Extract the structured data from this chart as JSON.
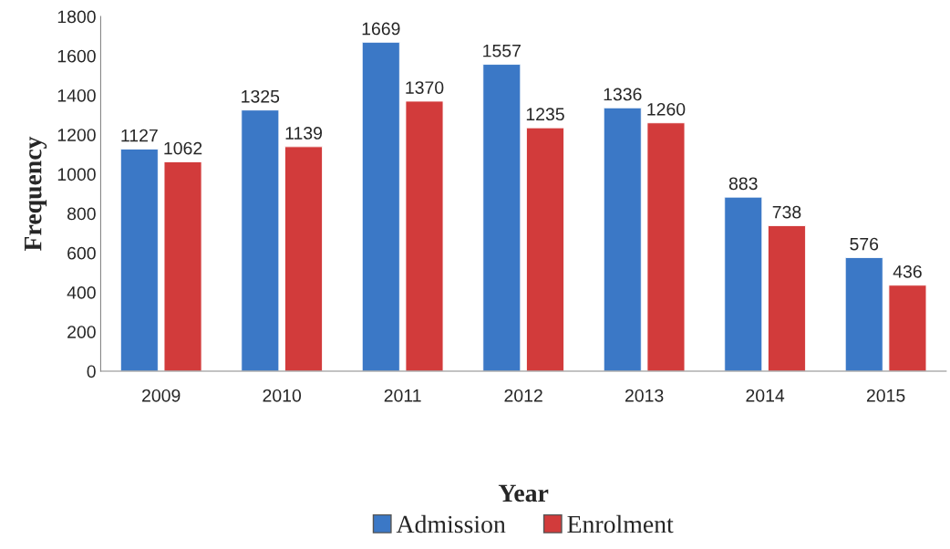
{
  "chart_data": {
    "type": "bar",
    "xlabel": "Year",
    "ylabel": "Frequency",
    "categories": [
      "2009",
      "2010",
      "2011",
      "2012",
      "2013",
      "2014",
      "2015"
    ],
    "series": [
      {
        "name": "Admission",
        "color": "#3b78c6",
        "values": [
          1127,
          1325,
          1669,
          1557,
          1336,
          883,
          576
        ]
      },
      {
        "name": "Enrolment",
        "color": "#d23b3b",
        "values": [
          1062,
          1139,
          1370,
          1235,
          1260,
          738,
          436
        ]
      }
    ],
    "ylim": [
      0,
      1800
    ],
    "yticks": [
      0,
      200,
      400,
      600,
      800,
      1000,
      1200,
      1400,
      1600,
      1800
    ],
    "data_labels": true,
    "grid": false,
    "legend": "bottom"
  }
}
